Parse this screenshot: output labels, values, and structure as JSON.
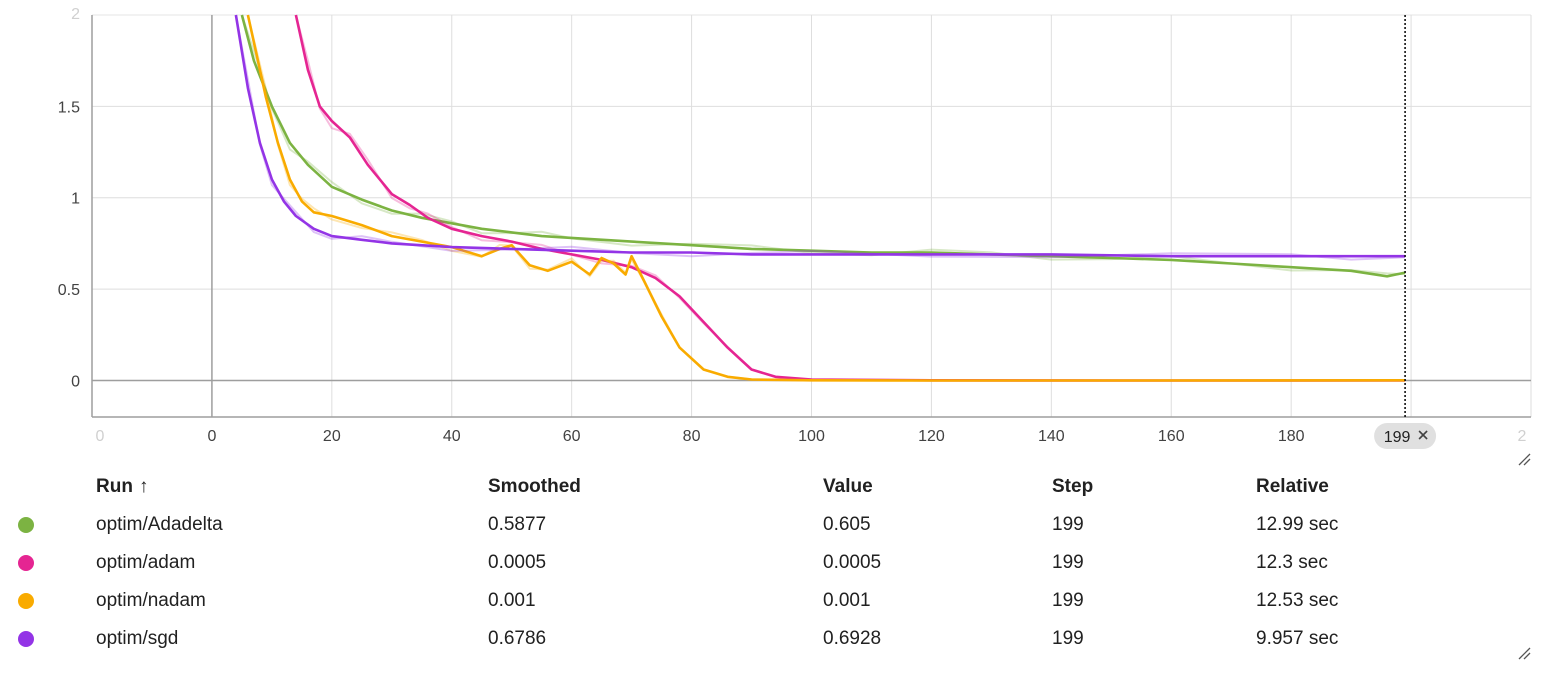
{
  "chart_data": {
    "type": "line",
    "xlim": [
      -20,
      220
    ],
    "ylim": [
      -0.2,
      2
    ],
    "xticks": [
      0,
      20,
      40,
      60,
      80,
      100,
      120,
      140,
      160,
      180
    ],
    "yticks": [
      0,
      0.5,
      1,
      1.5
    ],
    "grid": true,
    "cursor_step": 199,
    "cursor_label": "199",
    "x_label": "",
    "y_label": "",
    "series": [
      {
        "name": "optim/Adadelta",
        "color": "#7cb342",
        "points": [
          [
            5,
            2.0
          ],
          [
            7,
            1.75
          ],
          [
            10,
            1.5
          ],
          [
            13,
            1.3
          ],
          [
            16,
            1.18
          ],
          [
            20,
            1.06
          ],
          [
            25,
            0.99
          ],
          [
            30,
            0.93
          ],
          [
            35,
            0.89
          ],
          [
            40,
            0.86
          ],
          [
            45,
            0.83
          ],
          [
            50,
            0.81
          ],
          [
            55,
            0.79
          ],
          [
            60,
            0.78
          ],
          [
            70,
            0.76
          ],
          [
            80,
            0.74
          ],
          [
            90,
            0.72
          ],
          [
            100,
            0.71
          ],
          [
            110,
            0.7
          ],
          [
            120,
            0.7
          ],
          [
            130,
            0.69
          ],
          [
            140,
            0.68
          ],
          [
            150,
            0.67
          ],
          [
            160,
            0.66
          ],
          [
            170,
            0.64
          ],
          [
            180,
            0.62
          ],
          [
            190,
            0.6
          ],
          [
            196,
            0.57
          ],
          [
            199,
            0.59
          ]
        ]
      },
      {
        "name": "optim/adam",
        "color": "#e52592",
        "points": [
          [
            14,
            2.0
          ],
          [
            16,
            1.7
          ],
          [
            18,
            1.5
          ],
          [
            20,
            1.42
          ],
          [
            23,
            1.33
          ],
          [
            26,
            1.18
          ],
          [
            30,
            1.02
          ],
          [
            33,
            0.96
          ],
          [
            36,
            0.89
          ],
          [
            40,
            0.83
          ],
          [
            45,
            0.79
          ],
          [
            50,
            0.76
          ],
          [
            55,
            0.72
          ],
          [
            60,
            0.69
          ],
          [
            65,
            0.66
          ],
          [
            70,
            0.62
          ],
          [
            74,
            0.56
          ],
          [
            78,
            0.46
          ],
          [
            82,
            0.32
          ],
          [
            86,
            0.18
          ],
          [
            90,
            0.06
          ],
          [
            94,
            0.02
          ],
          [
            100,
            0.005
          ],
          [
            120,
            0.001
          ],
          [
            150,
            0.0
          ],
          [
            180,
            0.0
          ],
          [
            199,
            0.0005
          ]
        ]
      },
      {
        "name": "optim/nadam",
        "color": "#f9ab00",
        "points": [
          [
            6,
            2.0
          ],
          [
            9,
            1.55
          ],
          [
            11,
            1.3
          ],
          [
            13,
            1.1
          ],
          [
            15,
            0.98
          ],
          [
            17,
            0.92
          ],
          [
            20,
            0.9
          ],
          [
            25,
            0.85
          ],
          [
            30,
            0.79
          ],
          [
            35,
            0.76
          ],
          [
            40,
            0.73
          ],
          [
            45,
            0.68
          ],
          [
            48,
            0.72
          ],
          [
            50,
            0.74
          ],
          [
            53,
            0.63
          ],
          [
            56,
            0.6
          ],
          [
            60,
            0.65
          ],
          [
            63,
            0.58
          ],
          [
            65,
            0.67
          ],
          [
            67,
            0.64
          ],
          [
            69,
            0.58
          ],
          [
            70,
            0.68
          ],
          [
            72,
            0.55
          ],
          [
            75,
            0.35
          ],
          [
            78,
            0.18
          ],
          [
            82,
            0.06
          ],
          [
            86,
            0.02
          ],
          [
            90,
            0.005
          ],
          [
            100,
            0.001
          ],
          [
            120,
            0.0
          ],
          [
            160,
            0.0
          ],
          [
            199,
            0.001
          ]
        ]
      },
      {
        "name": "optim/sgd",
        "color": "#9334e6",
        "points": [
          [
            4,
            2.0
          ],
          [
            6,
            1.6
          ],
          [
            8,
            1.3
          ],
          [
            10,
            1.1
          ],
          [
            12,
            0.98
          ],
          [
            14,
            0.9
          ],
          [
            17,
            0.83
          ],
          [
            20,
            0.79
          ],
          [
            25,
            0.77
          ],
          [
            30,
            0.75
          ],
          [
            40,
            0.73
          ],
          [
            50,
            0.72
          ],
          [
            60,
            0.71
          ],
          [
            70,
            0.7
          ],
          [
            80,
            0.7
          ],
          [
            90,
            0.69
          ],
          [
            100,
            0.69
          ],
          [
            120,
            0.69
          ],
          [
            140,
            0.69
          ],
          [
            160,
            0.68
          ],
          [
            180,
            0.68
          ],
          [
            190,
            0.68
          ],
          [
            199,
            0.68
          ]
        ]
      }
    ]
  },
  "table": {
    "headers": {
      "run": "Run",
      "sort_arrow": "↑",
      "smoothed": "Smoothed",
      "value": "Value",
      "step": "Step",
      "relative": "Relative"
    },
    "rows": [
      {
        "run": "optim/Adadelta",
        "smoothed": "0.5877",
        "value": "0.605",
        "step": "199",
        "relative": "12.99 sec",
        "color": "#7cb342"
      },
      {
        "run": "optim/adam",
        "smoothed": "0.0005",
        "value": "0.0005",
        "step": "199",
        "relative": "12.3 sec",
        "color": "#e52592"
      },
      {
        "run": "optim/nadam",
        "smoothed": "0.001",
        "value": "0.001",
        "step": "199",
        "relative": "12.53 sec",
        "color": "#f9ab00"
      },
      {
        "run": "optim/sgd",
        "smoothed": "0.6786",
        "value": "0.6928",
        "step": "199",
        "relative": "9.957 sec",
        "color": "#9334e6"
      }
    ]
  }
}
